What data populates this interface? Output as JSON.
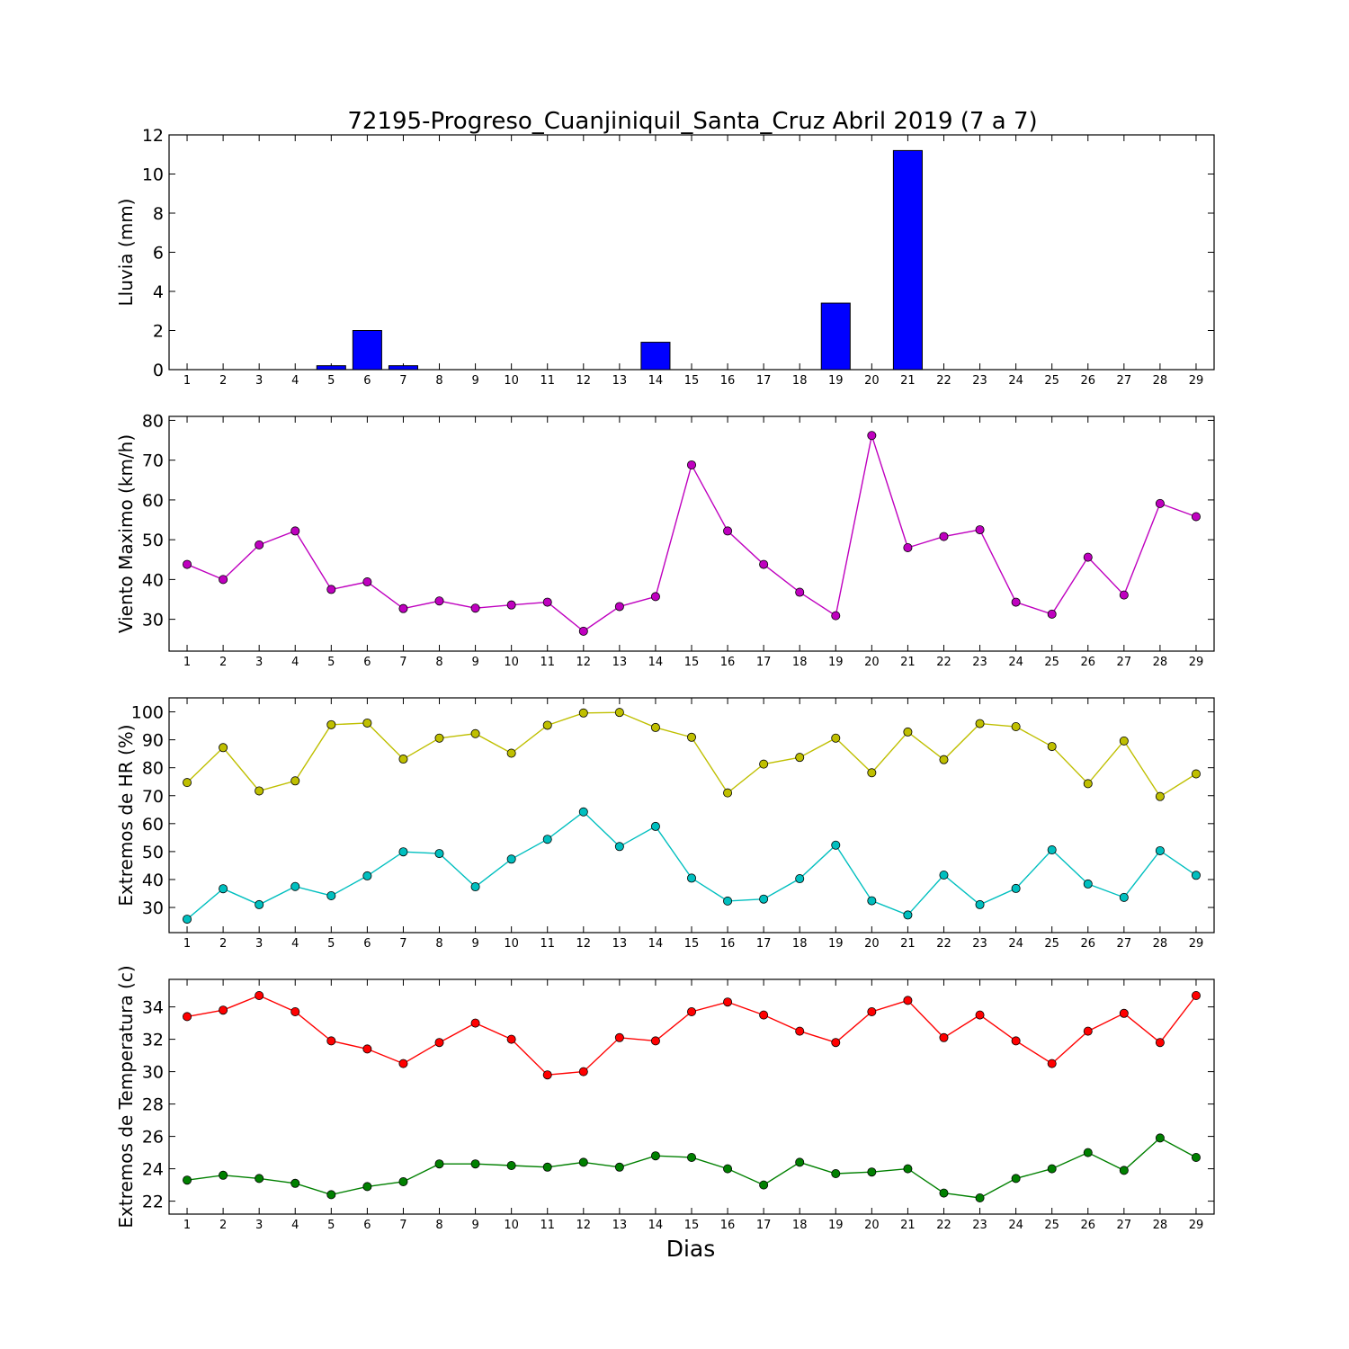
{
  "title": "72195-Progreso_Cuanjiniquil_Santa_Cruz Abril 2019  (7 a 7)",
  "xlabel": "Dias",
  "chart_data": [
    {
      "type": "bar",
      "ylabel": "Lluvia (mm)",
      "ylim": [
        0,
        12
      ],
      "yticks": [
        0,
        2,
        4,
        6,
        8,
        10,
        12
      ],
      "x": [
        1,
        2,
        3,
        4,
        5,
        6,
        7,
        8,
        9,
        10,
        11,
        12,
        13,
        14,
        15,
        16,
        17,
        18,
        19,
        20,
        21,
        22,
        23,
        24,
        25,
        26,
        27,
        28,
        29
      ],
      "series": [
        {
          "color": "#0000ff",
          "values": [
            0,
            0,
            0,
            0,
            0.2,
            2.0,
            0.2,
            0,
            0,
            0,
            0,
            0,
            0,
            1.4,
            0,
            0,
            0,
            0,
            3.4,
            0,
            11.2,
            0,
            0,
            0,
            0,
            0,
            0,
            0,
            0
          ]
        }
      ]
    },
    {
      "type": "line",
      "ylabel": "Viento Maximo (km/h)",
      "ylim": [
        22,
        81
      ],
      "yticks": [
        30,
        40,
        50,
        60,
        70,
        80
      ],
      "x": [
        1,
        2,
        3,
        4,
        5,
        6,
        7,
        8,
        9,
        10,
        11,
        12,
        13,
        14,
        15,
        16,
        17,
        18,
        19,
        20,
        21,
        22,
        23,
        24,
        25,
        26,
        27,
        28,
        29
      ],
      "series": [
        {
          "color": "#bf00bf",
          "values": [
            43.8,
            40.0,
            48.7,
            52.2,
            37.5,
            39.4,
            32.7,
            34.6,
            32.8,
            33.6,
            34.3,
            27.0,
            33.2,
            35.7,
            68.8,
            52.2,
            43.8,
            36.8,
            30.9,
            76.2,
            48.0,
            50.8,
            52.5,
            34.3,
            31.3,
            45.6,
            36.1,
            59.1,
            55.8
          ]
        }
      ]
    },
    {
      "type": "line",
      "ylabel": "Extremos de HR (%)",
      "ylim": [
        21,
        105
      ],
      "yticks": [
        30,
        40,
        50,
        60,
        70,
        80,
        90,
        100
      ],
      "x": [
        1,
        2,
        3,
        4,
        5,
        6,
        7,
        8,
        9,
        10,
        11,
        12,
        13,
        14,
        15,
        16,
        17,
        18,
        19,
        20,
        21,
        22,
        23,
        24,
        25,
        26,
        27,
        28,
        29
      ],
      "series": [
        {
          "color": "#bfbf00",
          "values": [
            74.7,
            87.2,
            71.7,
            75.3,
            95.4,
            96.0,
            83.1,
            90.6,
            92.2,
            85.2,
            95.2,
            99.6,
            99.8,
            94.4,
            90.9,
            71.0,
            81.3,
            83.7,
            90.6,
            78.2,
            92.8,
            82.9,
            95.8,
            94.7,
            87.6,
            74.3,
            89.6,
            69.7,
            77.8
          ]
        },
        {
          "color": "#00bfbf",
          "values": [
            25.8,
            36.7,
            31.0,
            37.5,
            34.2,
            41.3,
            49.9,
            49.3,
            37.4,
            47.3,
            54.4,
            64.2,
            51.8,
            59.0,
            40.5,
            32.3,
            33.0,
            40.3,
            52.3,
            32.4,
            27.3,
            41.6,
            31.0,
            36.8,
            50.6,
            38.4,
            33.6,
            50.3,
            41.5
          ]
        }
      ]
    },
    {
      "type": "line",
      "ylabel": "Extremos de Temperatura (c)",
      "ylim": [
        21.2,
        35.7
      ],
      "yticks": [
        22,
        24,
        26,
        28,
        30,
        32,
        34
      ],
      "x": [
        1,
        2,
        3,
        4,
        5,
        6,
        7,
        8,
        9,
        10,
        11,
        12,
        13,
        14,
        15,
        16,
        17,
        18,
        19,
        20,
        21,
        22,
        23,
        24,
        25,
        26,
        27,
        28,
        29
      ],
      "series": [
        {
          "color": "#ff0000",
          "values": [
            33.4,
            33.8,
            34.7,
            33.7,
            31.9,
            31.4,
            30.5,
            31.8,
            33.0,
            32.0,
            29.8,
            30.0,
            32.1,
            31.9,
            33.7,
            34.3,
            33.5,
            32.5,
            31.8,
            33.7,
            34.4,
            32.1,
            33.5,
            31.9,
            30.5,
            32.5,
            33.6,
            31.8,
            34.7
          ]
        },
        {
          "color": "#008000",
          "values": [
            23.3,
            23.6,
            23.4,
            23.1,
            22.4,
            22.9,
            23.2,
            24.3,
            24.3,
            24.2,
            24.1,
            24.4,
            24.1,
            24.8,
            24.7,
            24.0,
            23.0,
            24.4,
            23.7,
            23.8,
            24.0,
            22.5,
            22.2,
            23.4,
            24.0,
            25.0,
            23.9,
            25.9,
            24.7
          ]
        }
      ]
    }
  ]
}
